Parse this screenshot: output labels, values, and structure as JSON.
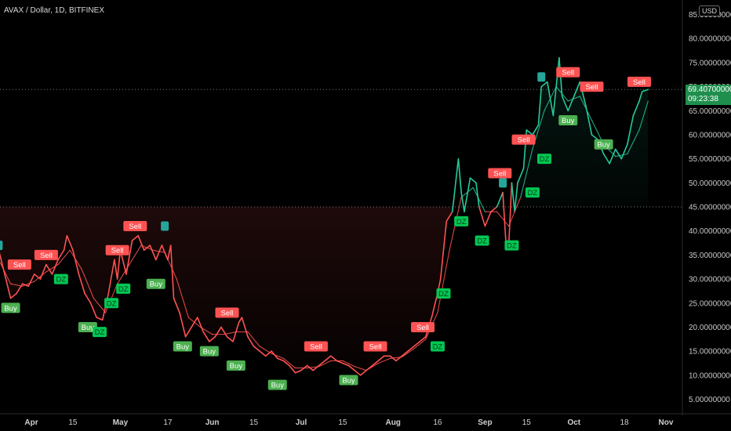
{
  "header": {
    "title": "AVAX / Dollar, 1D, BITFINEX",
    "currency": "USD"
  },
  "price_label": {
    "price": "69.40700000",
    "countdown": "09:23:38"
  },
  "colors": {
    "background": "#000000",
    "bull": "#26c99a",
    "bear": "#ff5252",
    "buy_label": "#4caf50",
    "sell_label": "#ff5252",
    "dz_label": "#00c853",
    "price_box": "#1f8f4e"
  },
  "chart_data": {
    "type": "line",
    "title": "AVAX / Dollar, 1D, BITFINEX",
    "xlabel": "",
    "ylabel": "",
    "ylim": [
      2,
      85
    ],
    "y_ticks": [
      "85.00000000",
      "80.00000000",
      "75.00000000",
      "70.00000000",
      "65.00000000",
      "60.00000000",
      "55.00000000",
      "50.00000000",
      "45.00000000",
      "40.00000000",
      "35.00000000",
      "30.00000000",
      "25.00000000",
      "20.00000000",
      "15.00000000",
      "10.00000000",
      "5.00000000"
    ],
    "x_ticks": [
      {
        "label": "Apr",
        "date": "2021-04-01"
      },
      {
        "label": "15",
        "date": "2021-04-15"
      },
      {
        "label": "May",
        "date": "2021-05-01"
      },
      {
        "label": "17",
        "date": "2021-05-17"
      },
      {
        "label": "Jun",
        "date": "2021-06-01"
      },
      {
        "label": "15",
        "date": "2021-06-15"
      },
      {
        "label": "Jul",
        "date": "2021-07-01"
      },
      {
        "label": "15",
        "date": "2021-07-15"
      },
      {
        "label": "Aug",
        "date": "2021-08-01"
      },
      {
        "label": "16",
        "date": "2021-08-16"
      },
      {
        "label": "Sep",
        "date": "2021-09-01"
      },
      {
        "label": "15",
        "date": "2021-09-15"
      },
      {
        "label": "Oct",
        "date": "2021-10-01"
      },
      {
        "label": "18",
        "date": "2021-10-18"
      },
      {
        "label": "Nov",
        "date": "2021-11-01"
      }
    ],
    "reference_lines": [
      45,
      69.407
    ],
    "fills": [
      {
        "from": "2021-03-21",
        "to": "2021-08-22",
        "below": 45,
        "color": "#ff5252"
      },
      {
        "from": "2021-08-22",
        "to": "2021-10-26",
        "below": 69.4,
        "color": "#26c99a"
      }
    ],
    "series": [
      {
        "color_rule": "green above 45, red below 45",
        "points": [
          [
            "2021-03-21",
            36
          ],
          [
            "2021-03-23",
            31
          ],
          [
            "2021-03-25",
            26
          ],
          [
            "2021-03-27",
            27
          ],
          [
            "2021-03-29",
            29
          ],
          [
            "2021-03-31",
            28.5
          ],
          [
            "2021-04-02",
            31
          ],
          [
            "2021-04-04",
            30
          ],
          [
            "2021-04-06",
            33
          ],
          [
            "2021-04-08",
            31
          ],
          [
            "2021-04-10",
            34
          ],
          [
            "2021-04-12",
            36
          ],
          [
            "2021-04-13",
            39
          ],
          [
            "2021-04-15",
            36
          ],
          [
            "2021-04-17",
            31
          ],
          [
            "2021-04-19",
            27
          ],
          [
            "2021-04-21",
            25
          ],
          [
            "2021-04-23",
            22
          ],
          [
            "2021-04-25",
            21.5
          ],
          [
            "2021-04-27",
            27
          ],
          [
            "2021-04-29",
            34
          ],
          [
            "2021-04-30",
            30
          ],
          [
            "2021-05-01",
            36
          ],
          [
            "2021-05-03",
            31
          ],
          [
            "2021-05-05",
            38
          ],
          [
            "2021-05-07",
            39
          ],
          [
            "2021-05-09",
            36
          ],
          [
            "2021-05-11",
            37
          ],
          [
            "2021-05-13",
            34
          ],
          [
            "2021-05-15",
            37
          ],
          [
            "2021-05-17",
            34
          ],
          [
            "2021-05-18",
            37
          ],
          [
            "2021-05-19",
            26
          ],
          [
            "2021-05-21",
            23
          ],
          [
            "2021-05-23",
            18
          ],
          [
            "2021-05-25",
            20
          ],
          [
            "2021-05-27",
            22
          ],
          [
            "2021-05-29",
            19
          ],
          [
            "2021-05-31",
            17
          ],
          [
            "2021-06-02",
            18
          ],
          [
            "2021-06-04",
            20
          ],
          [
            "2021-06-06",
            18
          ],
          [
            "2021-06-08",
            17
          ],
          [
            "2021-06-10",
            21
          ],
          [
            "2021-06-11",
            22
          ],
          [
            "2021-06-13",
            18
          ],
          [
            "2021-06-15",
            16
          ],
          [
            "2021-06-17",
            15
          ],
          [
            "2021-06-19",
            14
          ],
          [
            "2021-06-21",
            15
          ],
          [
            "2021-06-23",
            13.5
          ],
          [
            "2021-06-25",
            13
          ],
          [
            "2021-06-27",
            12
          ],
          [
            "2021-06-29",
            10.5
          ],
          [
            "2021-07-01",
            11
          ],
          [
            "2021-07-03",
            12
          ],
          [
            "2021-07-05",
            11
          ],
          [
            "2021-07-07",
            12
          ],
          [
            "2021-07-09",
            13
          ],
          [
            "2021-07-11",
            14
          ],
          [
            "2021-07-13",
            13
          ],
          [
            "2021-07-15",
            12.5
          ],
          [
            "2021-07-17",
            12
          ],
          [
            "2021-07-19",
            11
          ],
          [
            "2021-07-21",
            10
          ],
          [
            "2021-07-23",
            11
          ],
          [
            "2021-07-25",
            12
          ],
          [
            "2021-07-27",
            13
          ],
          [
            "2021-07-29",
            14
          ],
          [
            "2021-07-31",
            14
          ],
          [
            "2021-08-02",
            13
          ],
          [
            "2021-08-04",
            14
          ],
          [
            "2021-08-06",
            15
          ],
          [
            "2021-08-08",
            16
          ],
          [
            "2021-08-10",
            17
          ],
          [
            "2021-08-12",
            18
          ],
          [
            "2021-08-14",
            22
          ],
          [
            "2021-08-16",
            27
          ],
          [
            "2021-08-17",
            30
          ],
          [
            "2021-08-19",
            42
          ],
          [
            "2021-08-21",
            44
          ],
          [
            "2021-08-23",
            55
          ],
          [
            "2021-08-24",
            48
          ],
          [
            "2021-08-25",
            44
          ],
          [
            "2021-08-27",
            51
          ],
          [
            "2021-08-29",
            50
          ],
          [
            "2021-08-30",
            45
          ],
          [
            "2021-09-01",
            41
          ],
          [
            "2021-09-03",
            44
          ],
          [
            "2021-09-05",
            45
          ],
          [
            "2021-09-07",
            48
          ],
          [
            "2021-09-08",
            38
          ],
          [
            "2021-09-09",
            37
          ],
          [
            "2021-09-10",
            50
          ],
          [
            "2021-09-11",
            44
          ],
          [
            "2021-09-12",
            50
          ],
          [
            "2021-09-14",
            53
          ],
          [
            "2021-09-15",
            61
          ],
          [
            "2021-09-17",
            60
          ],
          [
            "2021-09-19",
            62
          ],
          [
            "2021-09-20",
            70
          ],
          [
            "2021-09-22",
            71
          ],
          [
            "2021-09-24",
            64
          ],
          [
            "2021-09-26",
            76
          ],
          [
            "2021-09-27",
            68
          ],
          [
            "2021-09-29",
            65
          ],
          [
            "2021-10-01",
            68
          ],
          [
            "2021-10-03",
            71
          ],
          [
            "2021-10-05",
            66
          ],
          [
            "2021-10-07",
            60
          ],
          [
            "2021-10-09",
            59
          ],
          [
            "2021-10-11",
            56
          ],
          [
            "2021-10-13",
            54
          ],
          [
            "2021-10-15",
            57
          ],
          [
            "2021-10-17",
            55
          ],
          [
            "2021-10-19",
            58
          ],
          [
            "2021-10-21",
            64
          ],
          [
            "2021-10-23",
            67
          ],
          [
            "2021-10-24",
            69
          ],
          [
            "2021-10-26",
            69.4
          ]
        ]
      },
      {
        "color_rule": "smoothed, green above 45, red below 45",
        "points": [
          [
            "2021-03-21",
            34
          ],
          [
            "2021-03-25",
            29
          ],
          [
            "2021-03-29",
            28.5
          ],
          [
            "2021-04-02",
            29.5
          ],
          [
            "2021-04-06",
            31.5
          ],
          [
            "2021-04-10",
            33
          ],
          [
            "2021-04-14",
            36
          ],
          [
            "2021-04-18",
            32
          ],
          [
            "2021-04-22",
            26
          ],
          [
            "2021-04-26",
            23
          ],
          [
            "2021-04-30",
            29
          ],
          [
            "2021-05-04",
            33
          ],
          [
            "2021-05-08",
            37
          ],
          [
            "2021-05-12",
            36
          ],
          [
            "2021-05-16",
            35.5
          ],
          [
            "2021-05-20",
            30
          ],
          [
            "2021-05-24",
            22
          ],
          [
            "2021-05-28",
            20
          ],
          [
            "2021-06-01",
            18.5
          ],
          [
            "2021-06-05",
            18.5
          ],
          [
            "2021-06-09",
            19
          ],
          [
            "2021-06-13",
            19
          ],
          [
            "2021-06-17",
            16
          ],
          [
            "2021-06-21",
            14.5
          ],
          [
            "2021-06-25",
            13.5
          ],
          [
            "2021-06-29",
            11.5
          ],
          [
            "2021-07-03",
            11.5
          ],
          [
            "2021-07-07",
            11.8
          ],
          [
            "2021-07-11",
            13
          ],
          [
            "2021-07-15",
            13
          ],
          [
            "2021-07-19",
            11.8
          ],
          [
            "2021-07-23",
            11
          ],
          [
            "2021-07-27",
            12.5
          ],
          [
            "2021-07-31",
            13.5
          ],
          [
            "2021-08-04",
            13.8
          ],
          [
            "2021-08-08",
            15.5
          ],
          [
            "2021-08-12",
            17.5
          ],
          [
            "2021-08-16",
            23
          ],
          [
            "2021-08-20",
            36
          ],
          [
            "2021-08-24",
            47
          ],
          [
            "2021-08-28",
            49
          ],
          [
            "2021-09-01",
            44
          ],
          [
            "2021-09-05",
            44
          ],
          [
            "2021-09-09",
            41
          ],
          [
            "2021-09-13",
            47
          ],
          [
            "2021-09-17",
            57
          ],
          [
            "2021-09-21",
            65
          ],
          [
            "2021-09-25",
            70
          ],
          [
            "2021-09-29",
            67
          ],
          [
            "2021-10-03",
            68
          ],
          [
            "2021-10-07",
            63
          ],
          [
            "2021-10-11",
            58
          ],
          [
            "2021-10-15",
            55.5
          ],
          [
            "2021-10-19",
            56
          ],
          [
            "2021-10-23",
            61
          ],
          [
            "2021-10-26",
            67
          ]
        ]
      }
    ],
    "signals": [
      {
        "text": "Sell",
        "date": "2021-03-28",
        "price": 33,
        "type": "sell"
      },
      {
        "text": "Sell",
        "date": "2021-04-06",
        "price": 35,
        "type": "sell"
      },
      {
        "text": "DZ",
        "date": "2021-04-11",
        "price": 30,
        "type": "dz"
      },
      {
        "text": "Buy",
        "date": "2021-03-25",
        "price": 24,
        "type": "buy"
      },
      {
        "text": "Buy",
        "date": "2021-04-20",
        "price": 20,
        "type": "buy"
      },
      {
        "text": "DZ",
        "date": "2021-04-24",
        "price": 19,
        "type": "dz"
      },
      {
        "text": "DZ",
        "date": "2021-04-28",
        "price": 25,
        "type": "dz"
      },
      {
        "text": "DZ",
        "date": "2021-05-02",
        "price": 28,
        "type": "dz"
      },
      {
        "text": "Sell",
        "date": "2021-04-30",
        "price": 36,
        "type": "sell"
      },
      {
        "text": "Sell",
        "date": "2021-05-06",
        "price": 41,
        "type": "sell"
      },
      {
        "text": "Buy",
        "date": "2021-05-13",
        "price": 29,
        "type": "buy"
      },
      {
        "text": "Buy",
        "date": "2021-05-22",
        "price": 16,
        "type": "buy"
      },
      {
        "text": "Sell",
        "date": "2021-06-06",
        "price": 23,
        "type": "sell"
      },
      {
        "text": "Buy",
        "date": "2021-05-31",
        "price": 15,
        "type": "buy"
      },
      {
        "text": "Buy",
        "date": "2021-06-09",
        "price": 12,
        "type": "buy"
      },
      {
        "text": "Buy",
        "date": "2021-06-23",
        "price": 8,
        "type": "buy"
      },
      {
        "text": "Sell",
        "date": "2021-07-06",
        "price": 16,
        "type": "sell"
      },
      {
        "text": "Buy",
        "date": "2021-07-17",
        "price": 9,
        "type": "buy"
      },
      {
        "text": "Sell",
        "date": "2021-07-26",
        "price": 16,
        "type": "sell"
      },
      {
        "text": "Sell",
        "date": "2021-08-11",
        "price": 20,
        "type": "sell"
      },
      {
        "text": "DZ",
        "date": "2021-08-16",
        "price": 16,
        "type": "dz"
      },
      {
        "text": "DZ",
        "date": "2021-08-18",
        "price": 27,
        "type": "dz"
      },
      {
        "text": "DZ",
        "date": "2021-08-24",
        "price": 42,
        "type": "dz"
      },
      {
        "text": "DZ",
        "date": "2021-08-31",
        "price": 38,
        "type": "dz"
      },
      {
        "text": "Sell",
        "date": "2021-09-06",
        "price": 52,
        "type": "sell"
      },
      {
        "text": "DZ",
        "date": "2021-09-10",
        "price": 37,
        "type": "dz"
      },
      {
        "text": "DZ",
        "date": "2021-09-17",
        "price": 48,
        "type": "dz"
      },
      {
        "text": "Sell",
        "date": "2021-09-14",
        "price": 59,
        "type": "sell"
      },
      {
        "text": "DZ",
        "date": "2021-09-21",
        "price": 55,
        "type": "dz"
      },
      {
        "text": "Sell",
        "date": "2021-09-29",
        "price": 73,
        "type": "sell"
      },
      {
        "text": "Buy",
        "date": "2021-09-29",
        "price": 63,
        "type": "buy"
      },
      {
        "text": "Sell",
        "date": "2021-10-07",
        "price": 70,
        "type": "sell"
      },
      {
        "text": "Buy",
        "date": "2021-10-11",
        "price": 58,
        "type": "buy"
      },
      {
        "text": "Sell",
        "date": "2021-10-23",
        "price": 71,
        "type": "sell"
      }
    ],
    "markers": [
      {
        "date": "2021-03-21",
        "price": 37,
        "color": "#26a69a"
      },
      {
        "date": "2021-05-16",
        "price": 41,
        "color": "#26a69a"
      },
      {
        "date": "2021-09-20",
        "price": 72,
        "color": "#26a69a"
      },
      {
        "date": "2021-09-07",
        "price": 50,
        "color": "#26a69a"
      }
    ]
  }
}
